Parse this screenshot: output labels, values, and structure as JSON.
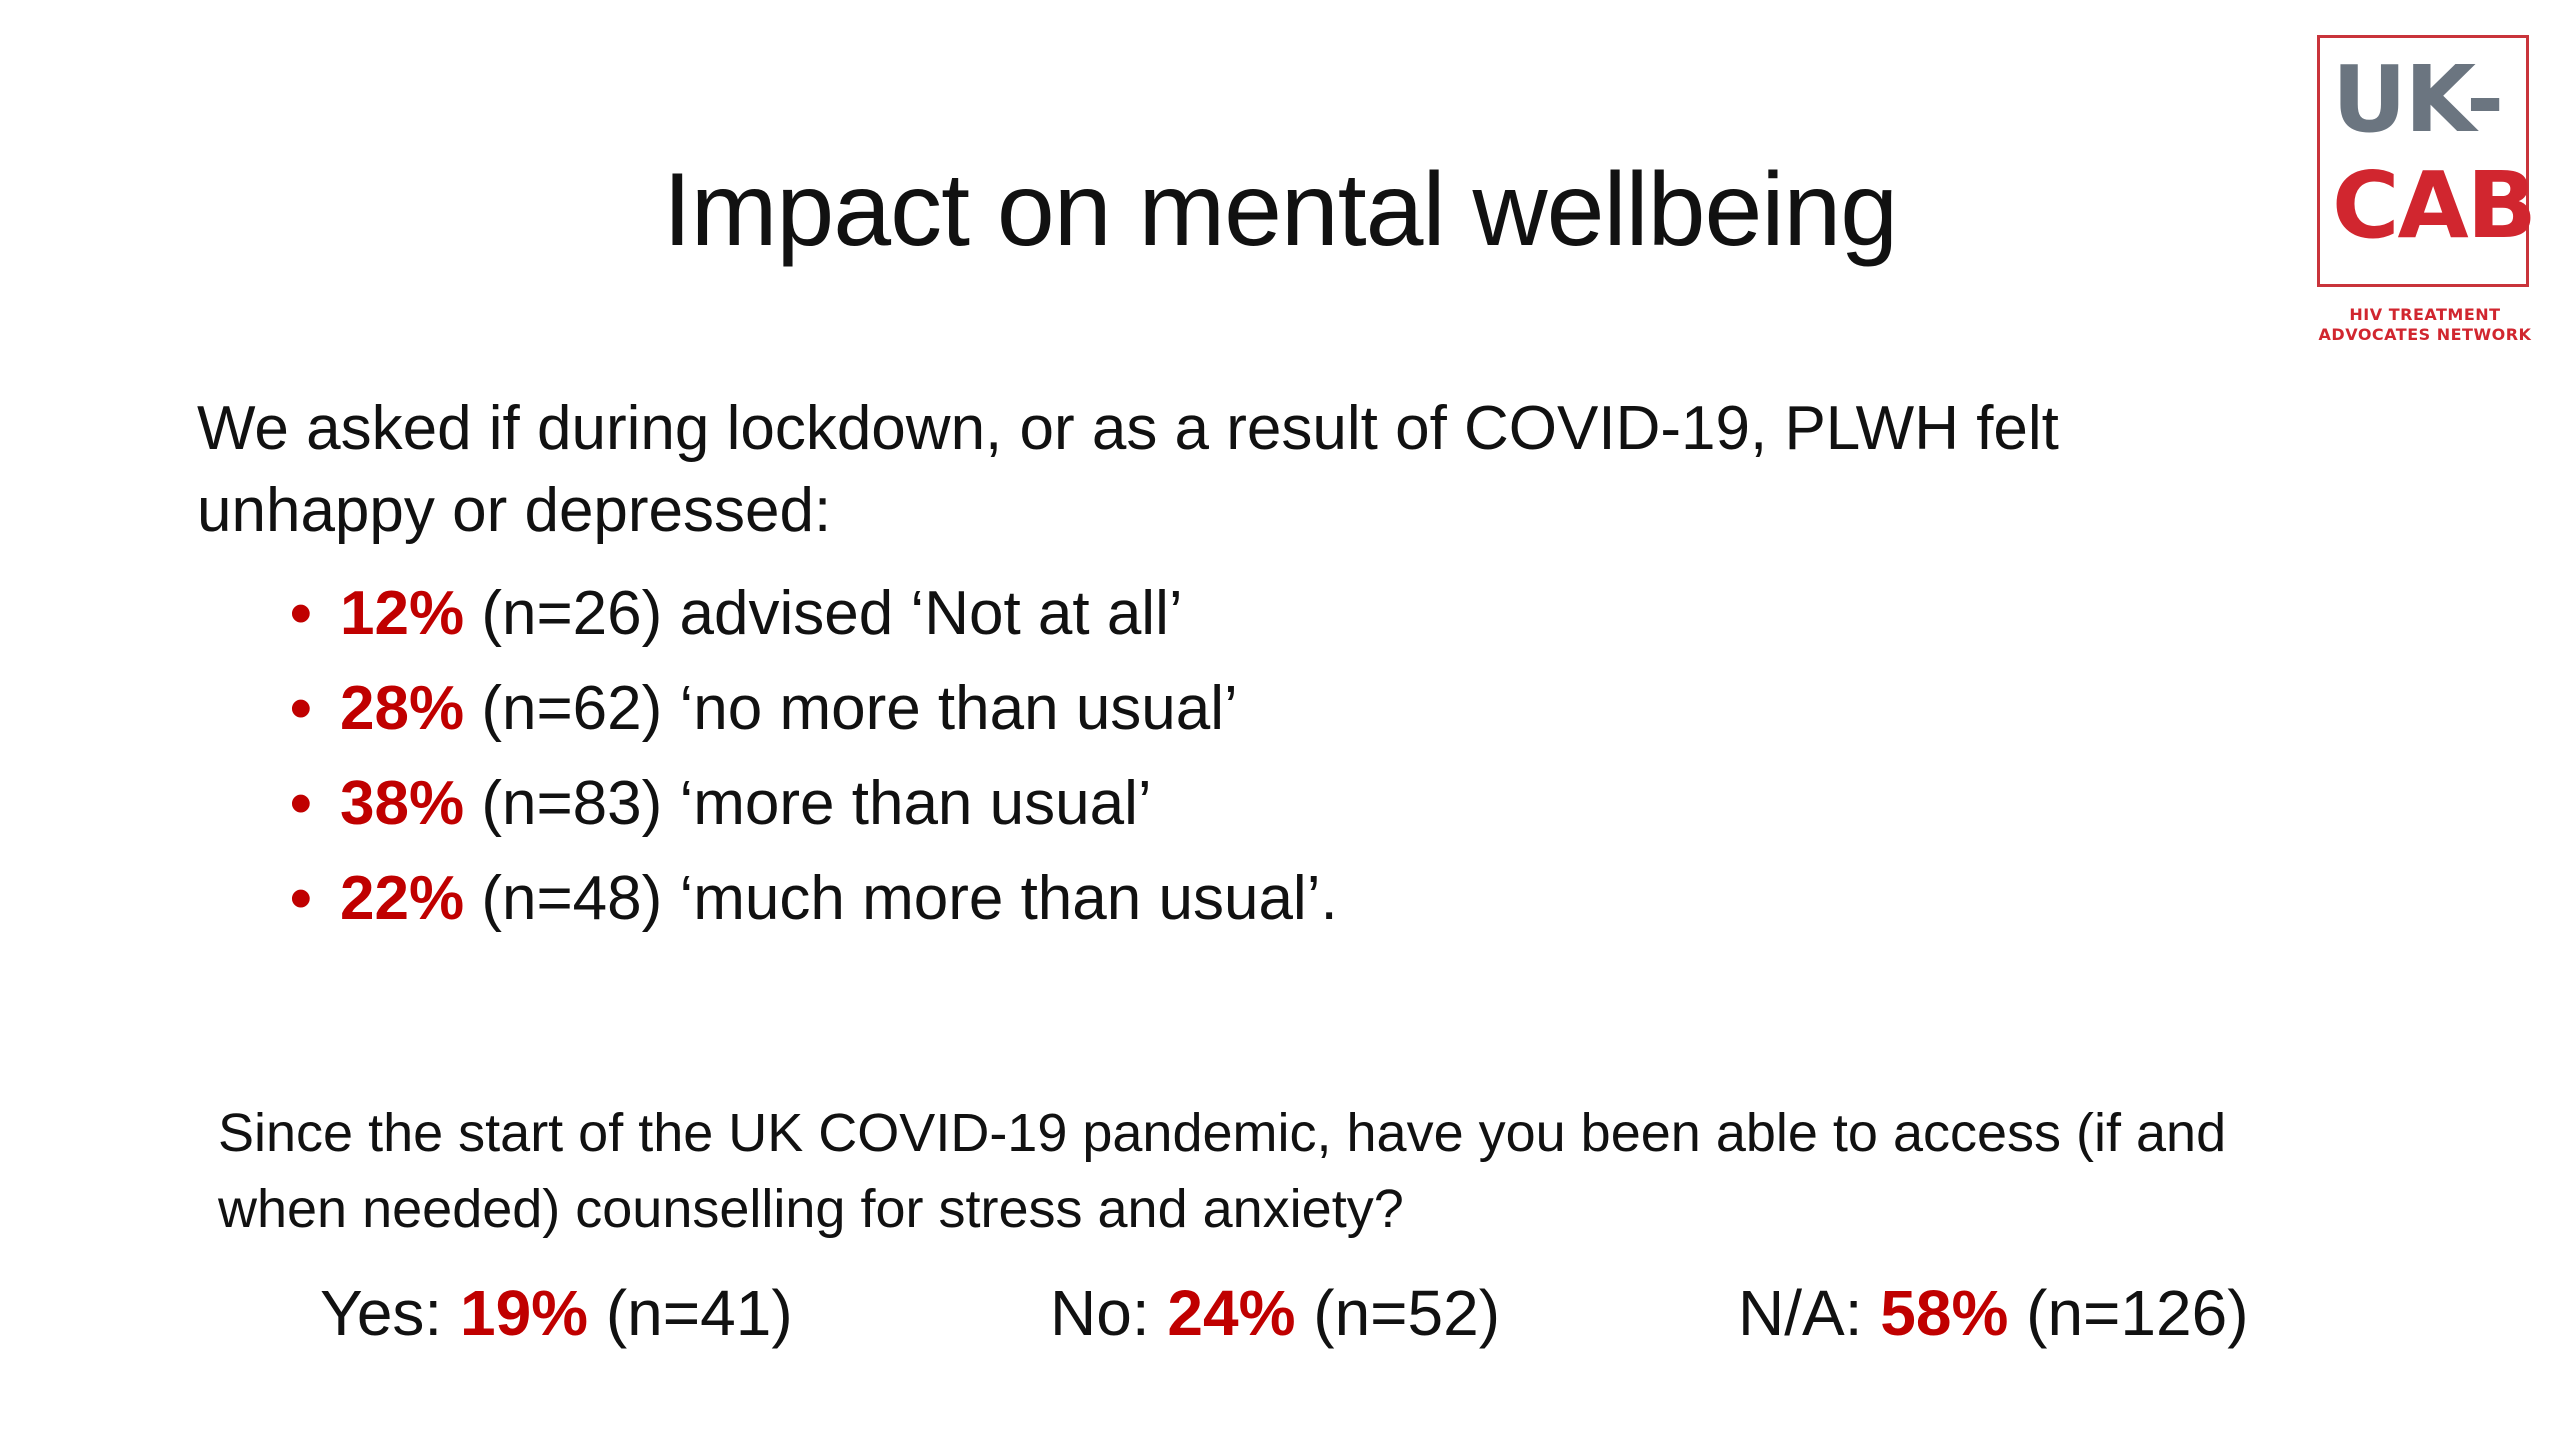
{
  "slide": {
    "title": "Impact on mental wellbeing",
    "logo": {
      "line1": "UK-",
      "line2": "CAB",
      "subtitle_line1": "HIV TREATMENT",
      "subtitle_line2": "ADVOCATES NETWORK",
      "colors": {
        "grey": "#6b7580",
        "red": "#d1262f"
      }
    },
    "intro": "We asked if during lockdown, or as a result of COVID-19, PLWH felt unhappy or depressed:",
    "bullets": [
      {
        "pct": "12%",
        "text": " (n=26) advised ‘Not at all’"
      },
      {
        "pct": "28%",
        "text": " (n=62) ‘no more than usual’"
      },
      {
        "pct": "38%",
        "text": " (n=83) ‘more than usual’"
      },
      {
        "pct": "22%",
        "text": " (n=48) ‘much more than usual’."
      }
    ],
    "bullet_symbol": "•",
    "question": "Since the start of the UK COVID-19 pandemic, have you been able to access (if and when needed) counselling for stress and anxiety?",
    "answers": [
      {
        "label": "Yes: ",
        "pct": "19%",
        "count": " (n=41)"
      },
      {
        "label": "No: ",
        "pct": "24%",
        "count": " (n=52)"
      },
      {
        "label": "N/A: ",
        "pct": "58%",
        "count": " (n=126)"
      }
    ],
    "accent_color": "#c00000"
  }
}
